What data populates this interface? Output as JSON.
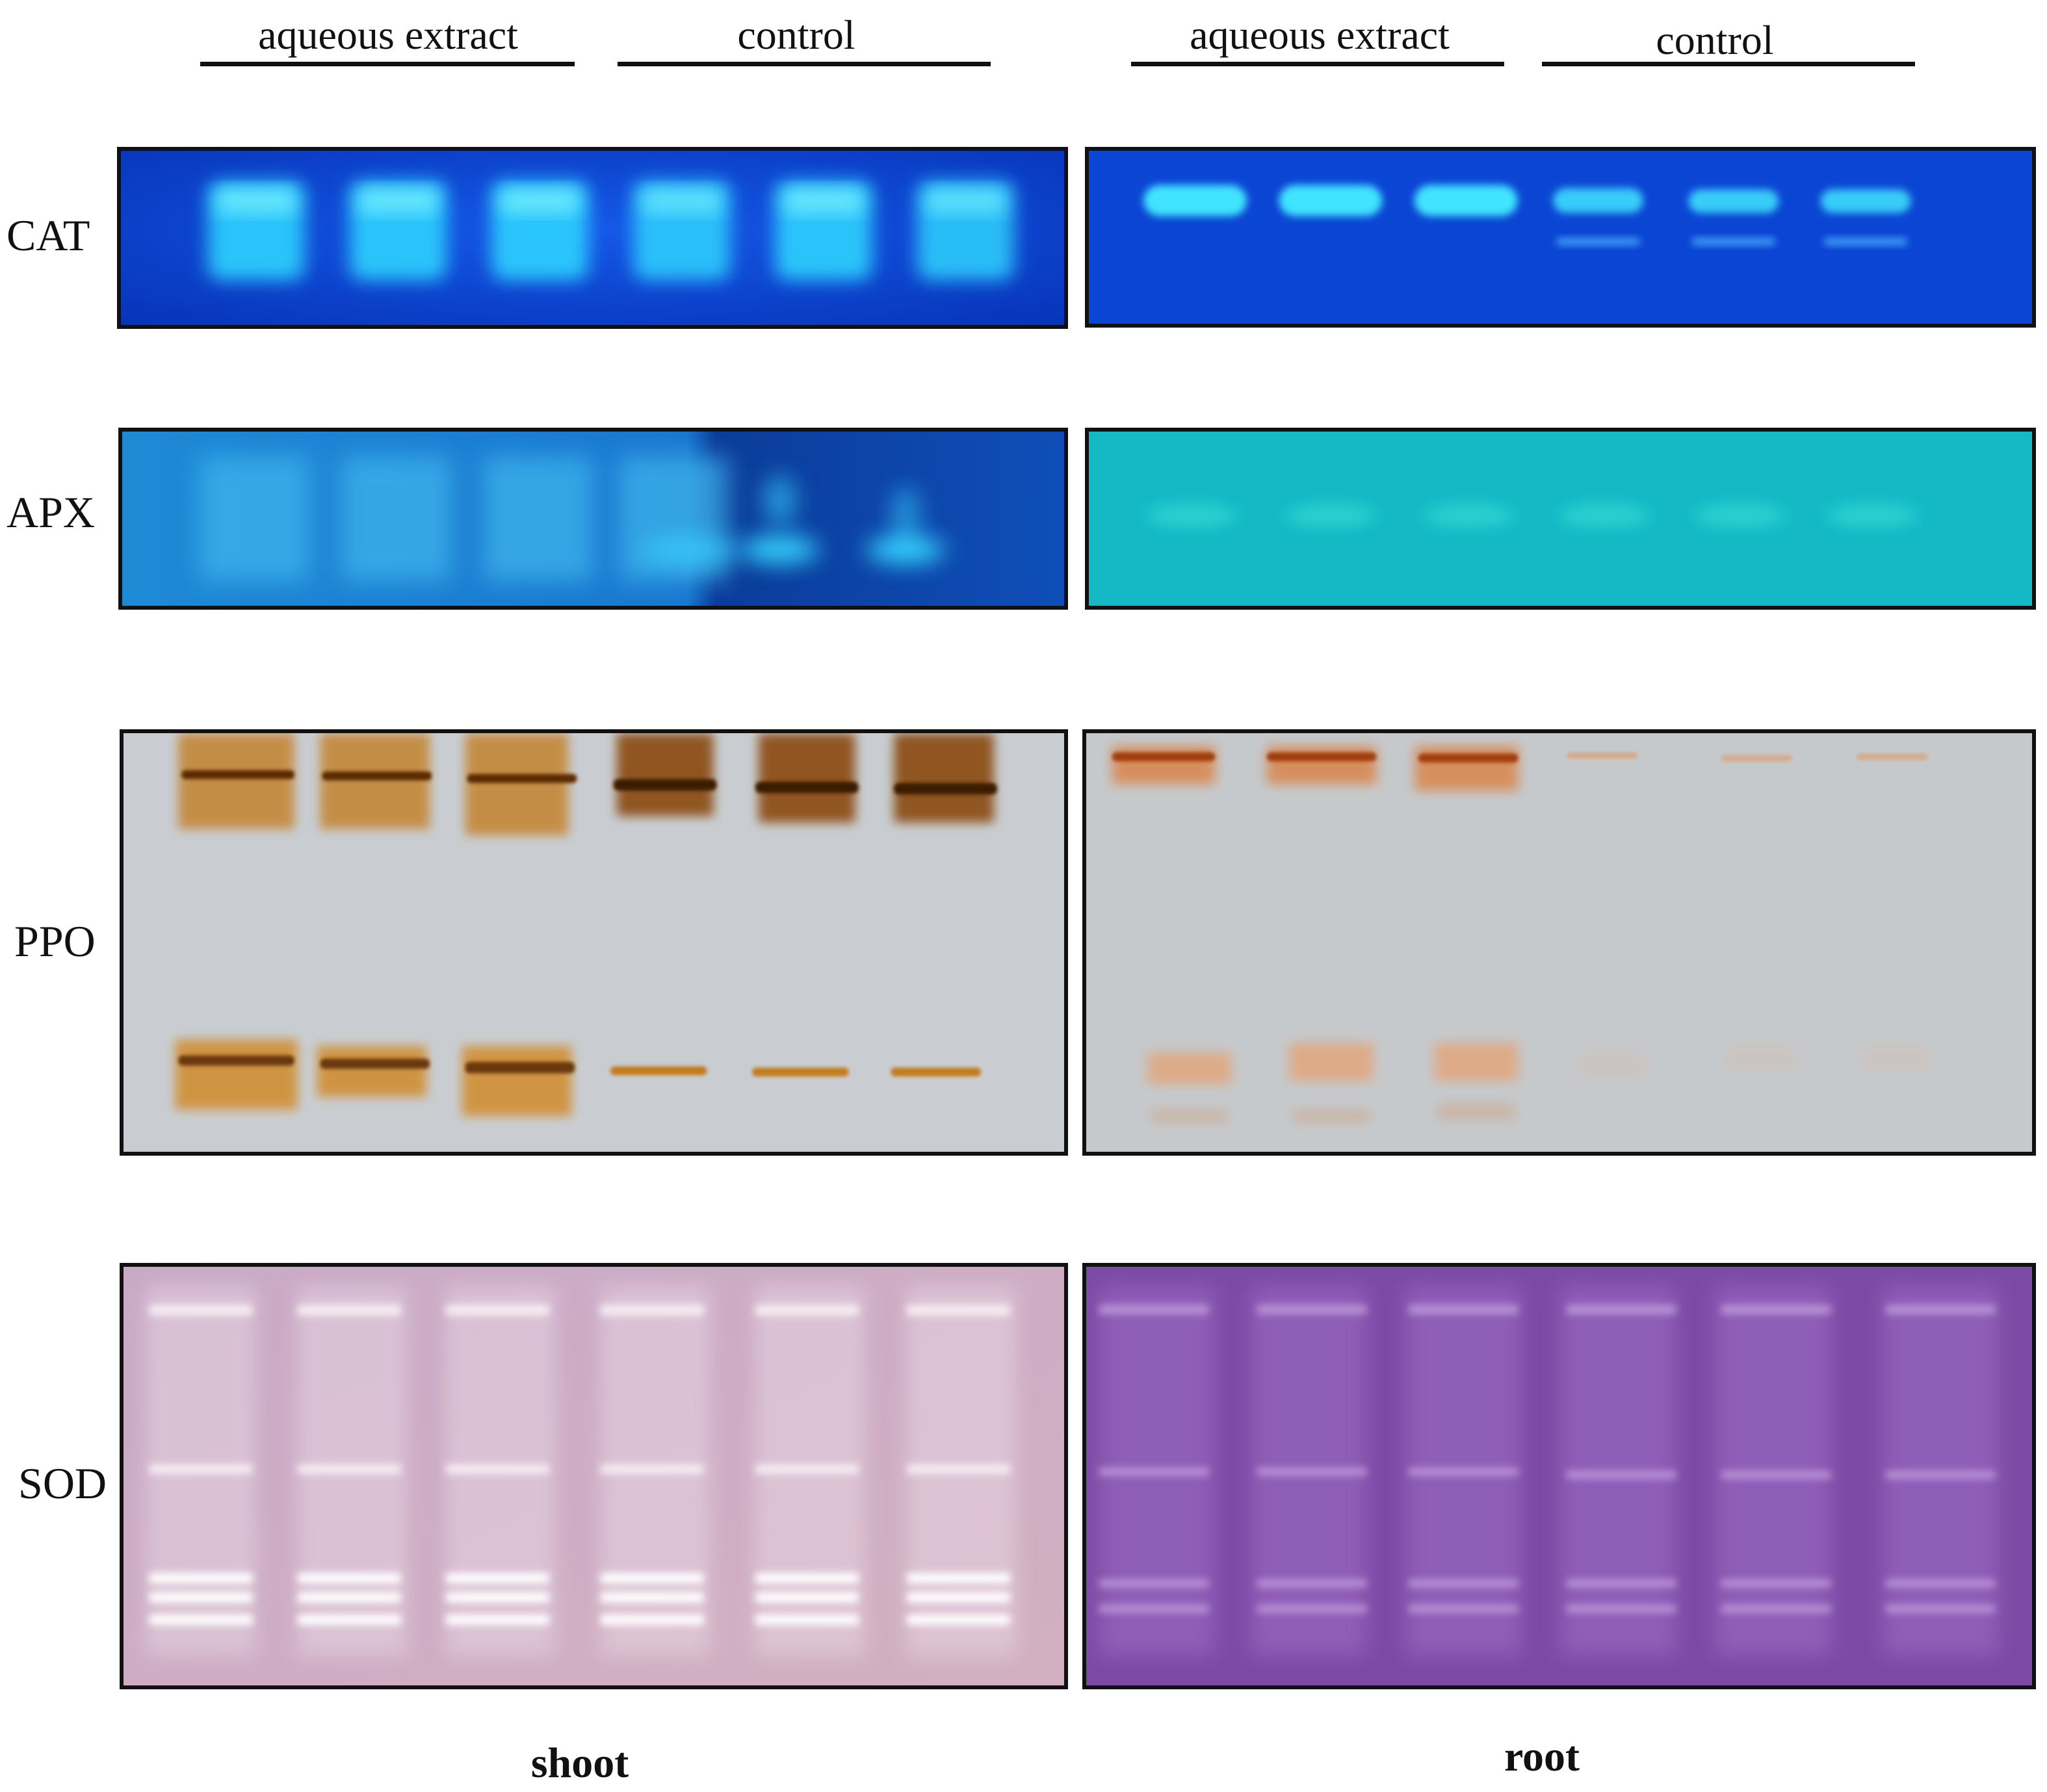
{
  "groups": [
    {
      "label": "aqueous extract"
    },
    {
      "label": "control"
    },
    {
      "label": "aqueous extract"
    },
    {
      "label": "control"
    }
  ],
  "rows": [
    {
      "label": "CAT",
      "stain": "blue fluorescent background with bright cyan bands"
    },
    {
      "label": "APX",
      "stain": "cyan-blue background with faint bands"
    },
    {
      "label": "PPO",
      "stain": "grey gel with brown bands"
    },
    {
      "label": "SOD",
      "stain": "purple-pink gel with white achromatic bands"
    }
  ],
  "panels": [
    {
      "label": "shoot"
    },
    {
      "label": "root"
    }
  ],
  "lanes_per_panel": 6,
  "colors": {
    "cat_bg": "#0a3fd6",
    "cat_band": "#35e6ff",
    "apx_shoot_bg": "#1a7fd0",
    "apx_root_bg": "#14bfc9",
    "ppo_bg": "#c9ccd0",
    "ppo_band": "#b86a12",
    "sod_shoot_bg": "#c8a7c4",
    "sod_root_bg": "#7f4ea6"
  }
}
